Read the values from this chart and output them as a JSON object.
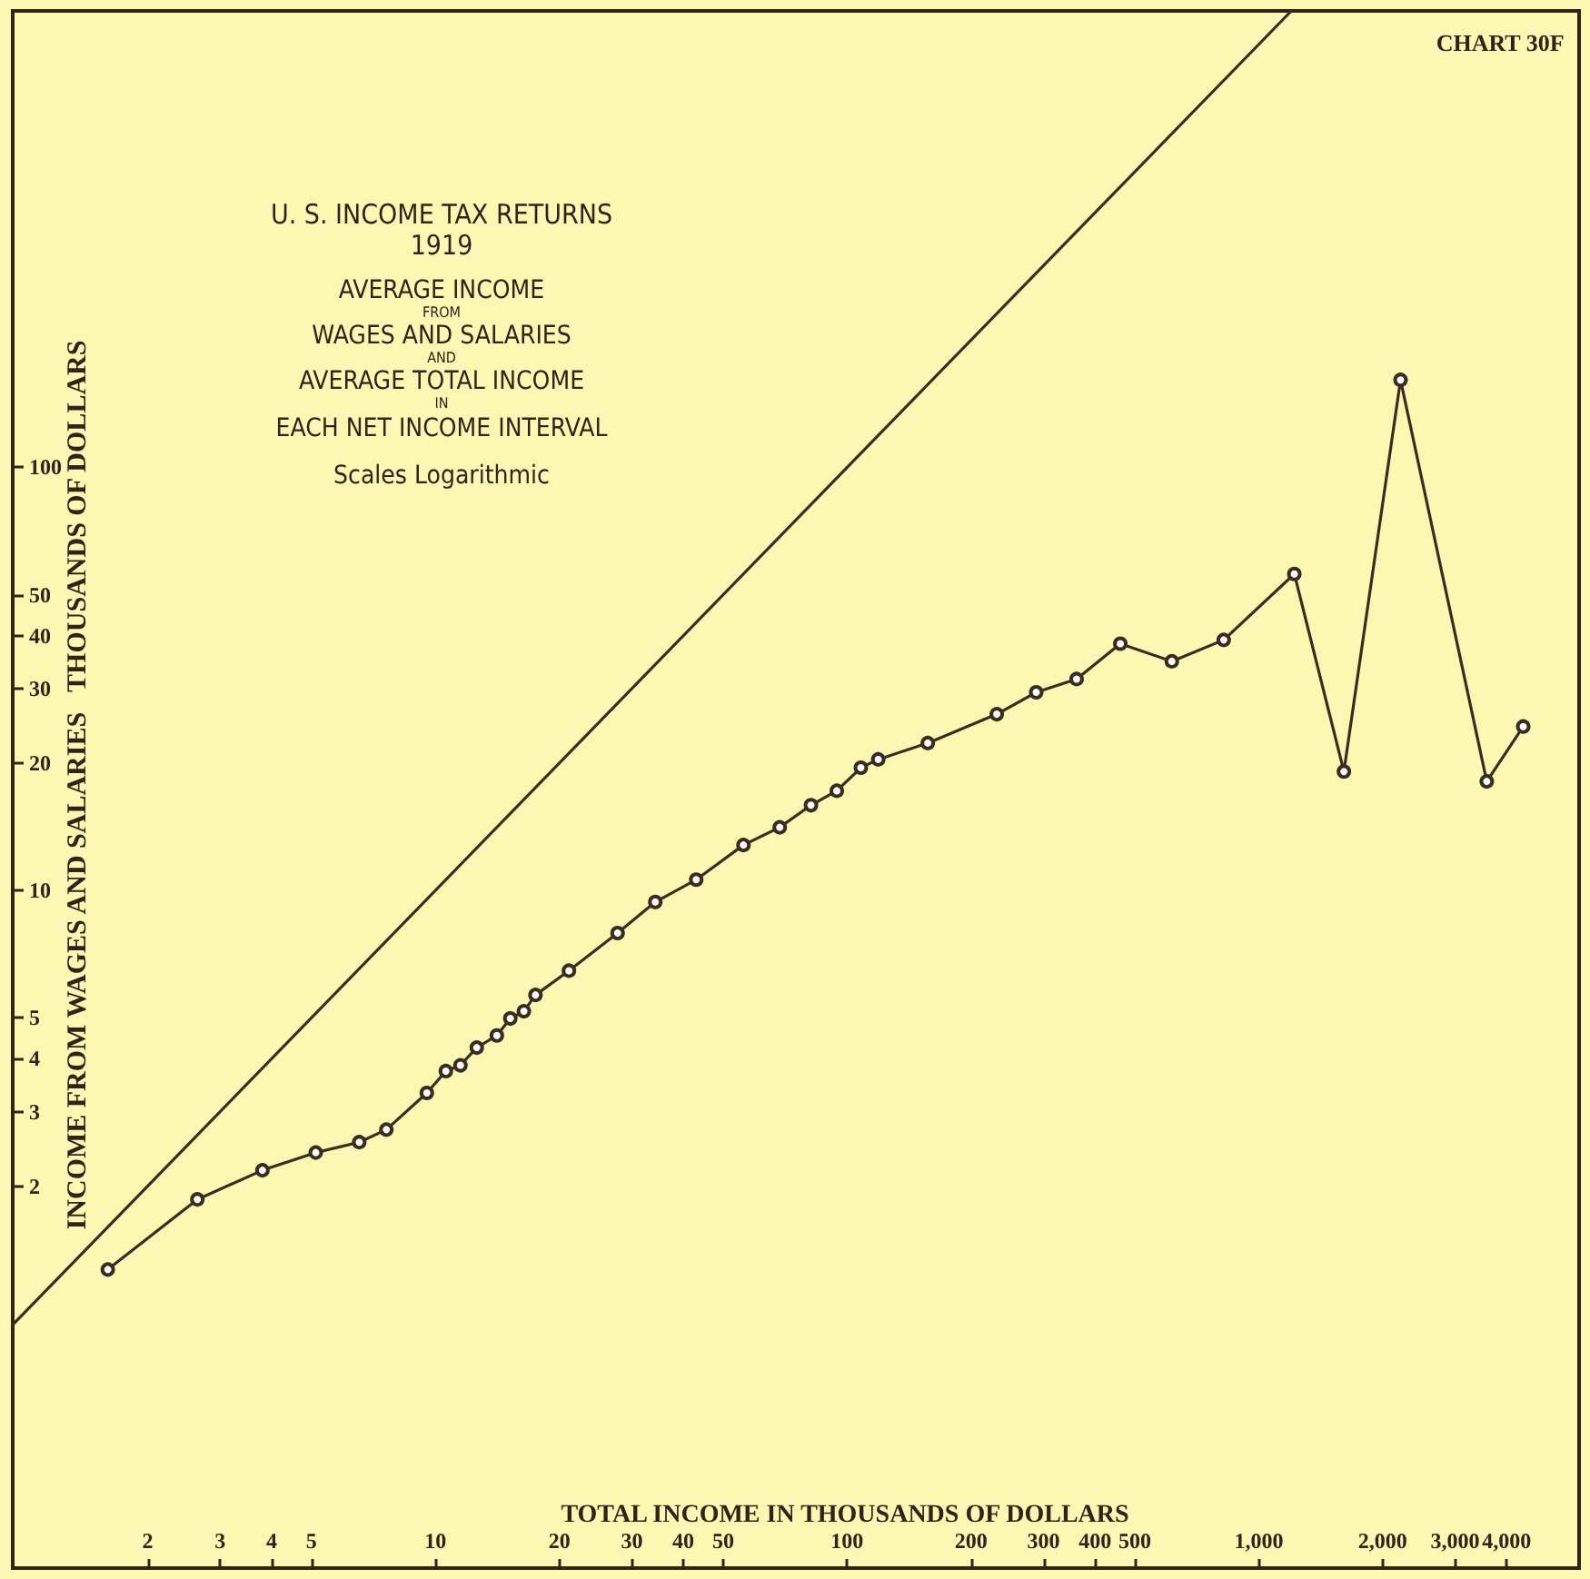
{
  "chart_data": {
    "type": "line",
    "title": "U. S. INCOME TAX RETURNS",
    "subtitle": "1919",
    "annotations": [
      "AVERAGE INCOME",
      "FROM",
      "WAGES AND SALARIES",
      "AND",
      "AVERAGE TOTAL INCOME",
      "IN",
      "EACH NET INCOME INTERVAL",
      "Scales Logarithmic",
      "CHART 30F"
    ],
    "xlabel": "TOTAL INCOME IN THOUSANDS OF DOLLARS",
    "ylabel": "INCOME FROM WAGES AND SALARIES   THOUSANDS OF DOLLARS",
    "log": "xy",
    "xlim": [
      0.94,
      6000
    ],
    "ylim": [
      0.25,
      1200
    ],
    "xticks": [
      2,
      3,
      4,
      5,
      10,
      20,
      30,
      40,
      50,
      100,
      200,
      300,
      400,
      500,
      {
        "value": 1000,
        "label": "1,000"
      },
      {
        "value": 2000,
        "label": "2,000"
      },
      {
        "value": 3000,
        "label": "3,000"
      },
      {
        "value": 4000,
        "label": "4,000"
      }
    ],
    "yticks": [
      2,
      3,
      4,
      5,
      10,
      20,
      30,
      40,
      50,
      100
    ],
    "grid": false,
    "series": [
      {
        "color": "#3a2c1e",
        "marker": "none",
        "x": [
          0.94,
          1200
        ],
        "values": [
          0.94,
          1200
        ]
      },
      {
        "color": "#3a2c1e",
        "marker": "circle",
        "x": [
          1.6,
          2.64,
          3.8,
          5.12,
          6.53,
          7.6,
          9.53,
          10.6,
          11.5,
          12.6,
          14.1,
          15.2,
          16.4,
          17.5,
          21.1,
          27.7,
          34.2,
          43,
          56,
          68.6,
          81.7,
          94.4,
          108,
          119,
          157,
          231,
          288,
          361,
          461,
          615,
          822,
          1220,
          1610,
          2210,
          3580,
          4390
        ],
        "values": [
          1.27,
          1.86,
          2.18,
          2.4,
          2.54,
          2.72,
          3.32,
          3.74,
          3.86,
          4.25,
          4.54,
          4.98,
          5.18,
          5.66,
          6.46,
          7.93,
          9.39,
          10.6,
          12.8,
          14.1,
          15.9,
          17.2,
          19.5,
          20.4,
          22.3,
          26.1,
          29.4,
          31.6,
          38.3,
          34.8,
          39.1,
          56,
          19.1,
          161,
          18.1,
          24.4
        ]
      }
    ]
  }
}
